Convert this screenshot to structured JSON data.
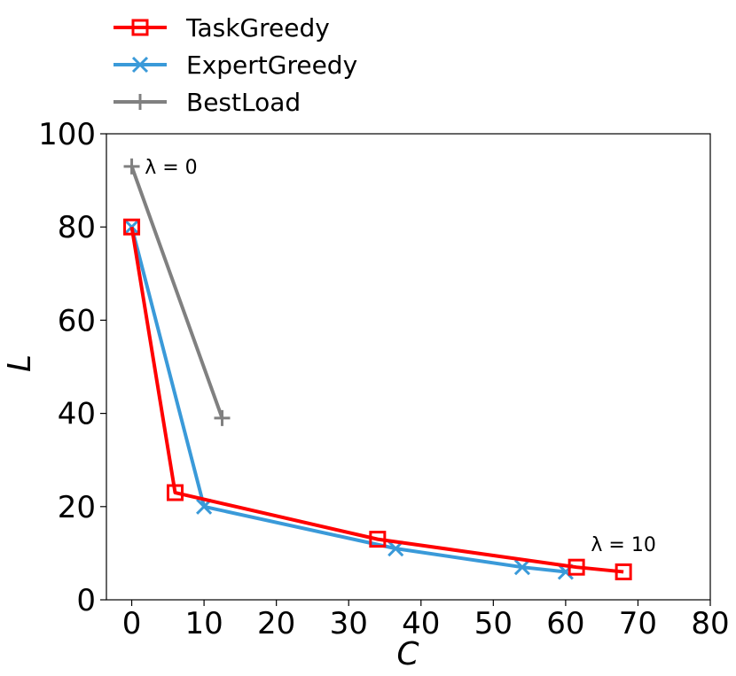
{
  "chart_data": {
    "type": "line",
    "xlabel": "C",
    "ylabel": "L",
    "xlim": [
      -3.5,
      80
    ],
    "ylim": [
      0,
      100
    ],
    "xticks": [
      0,
      10,
      20,
      30,
      40,
      50,
      60,
      70,
      80
    ],
    "yticks": [
      0,
      20,
      40,
      60,
      80,
      100
    ],
    "grid": false,
    "legend_position": "top-left, above plot",
    "series": [
      {
        "name": "TaskGreedy",
        "color": "#ff0000",
        "marker": "square",
        "points": [
          [
            0,
            80
          ],
          [
            6,
            23
          ],
          [
            34,
            13
          ],
          [
            61.5,
            7
          ],
          [
            68,
            6
          ]
        ]
      },
      {
        "name": "ExpertGreedy",
        "color": "#3a9ad9",
        "marker": "x",
        "points": [
          [
            0,
            80
          ],
          [
            10,
            20
          ],
          [
            36.5,
            11
          ],
          [
            54,
            7
          ],
          [
            60,
            6
          ]
        ]
      },
      {
        "name": "BestLoad",
        "color": "#808080",
        "marker": "plus",
        "points": [
          [
            0,
            93
          ],
          [
            12.5,
            39
          ]
        ]
      }
    ],
    "annotations": [
      {
        "text": "λ = 0",
        "x": 1.8,
        "y": 93
      },
      {
        "text": "λ = 10",
        "x": 63.5,
        "y": 12
      }
    ]
  }
}
